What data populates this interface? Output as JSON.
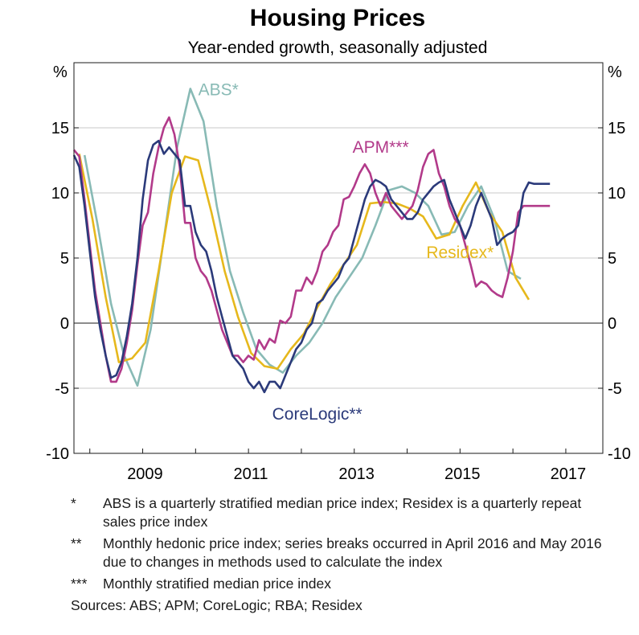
{
  "chart_data": {
    "type": "line",
    "title": "Housing Prices",
    "subtitle": "Year-ended growth, seasonally adjusted",
    "ylabel_left": "%",
    "ylabel_right": "%",
    "xlim": [
      2007.7,
      2017.7
    ],
    "ylim": [
      -10,
      20
    ],
    "yticks": [
      -10,
      -5,
      0,
      5,
      10,
      15
    ],
    "ytick_labels": [
      "-10",
      "-5",
      "0",
      "5",
      "10",
      "15"
    ],
    "xticks": [
      2009,
      2011,
      2013,
      2015,
      2017
    ],
    "xtick_labels": [
      "2009",
      "2011",
      "2013",
      "2015",
      "2017"
    ],
    "grid": true,
    "series": [
      {
        "name": "ABS*",
        "color": "#88bab5",
        "x": [
          2007.9,
          2008.15,
          2008.4,
          2008.65,
          2008.9,
          2009.15,
          2009.4,
          2009.65,
          2009.9,
          2010.15,
          2010.4,
          2010.65,
          2010.9,
          2011.15,
          2011.4,
          2011.65,
          2011.9,
          2012.15,
          2012.4,
          2012.65,
          2012.9,
          2013.15,
          2013.4,
          2013.65,
          2013.9,
          2014.15,
          2014.4,
          2014.65,
          2014.9,
          2015.15,
          2015.4,
          2015.65,
          2015.9,
          2016.15
        ],
        "values": [
          12.9,
          7.5,
          1.5,
          -2.5,
          -4.8,
          -0.5,
          6.5,
          13.5,
          18.0,
          15.5,
          9.0,
          4.0,
          0.8,
          -2.0,
          -3.2,
          -3.8,
          -2.5,
          -1.5,
          0.0,
          2.0,
          3.5,
          5.0,
          7.5,
          10.2,
          10.5,
          10.0,
          9.0,
          6.8,
          7.0,
          9.0,
          10.5,
          8.0,
          4.0,
          3.4
        ]
      },
      {
        "name": "Residex*",
        "color": "#e6b81c",
        "x": [
          2007.8,
          2008.05,
          2008.3,
          2008.55,
          2008.8,
          2009.05,
          2009.3,
          2009.55,
          2009.8,
          2010.05,
          2010.3,
          2010.55,
          2010.8,
          2011.05,
          2011.3,
          2011.55,
          2011.8,
          2012.05,
          2012.3,
          2012.55,
          2012.8,
          2013.05,
          2013.3,
          2013.55,
          2013.8,
          2014.05,
          2014.3,
          2014.55,
          2014.8,
          2015.05,
          2015.3,
          2015.55,
          2015.8,
          2016.05,
          2016.3
        ],
        "values": [
          13.0,
          8.0,
          2.0,
          -3.0,
          -2.7,
          -1.5,
          4.0,
          10.0,
          12.8,
          12.5,
          8.5,
          4.0,
          0.5,
          -2.3,
          -3.3,
          -3.5,
          -2.0,
          -0.8,
          1.2,
          3.0,
          4.5,
          6.0,
          9.2,
          9.3,
          9.2,
          8.8,
          8.2,
          6.5,
          6.8,
          9.0,
          10.8,
          8.5,
          7.0,
          3.5,
          1.8
        ]
      },
      {
        "name": "APM***",
        "color": "#b23a8a",
        "x": [
          2007.7,
          2007.8,
          2007.9,
          2008.0,
          2008.1,
          2008.2,
          2008.3,
          2008.4,
          2008.5,
          2008.6,
          2008.7,
          2008.8,
          2008.9,
          2009.0,
          2009.1,
          2009.2,
          2009.3,
          2009.4,
          2009.5,
          2009.6,
          2009.7,
          2009.8,
          2009.9,
          2010.0,
          2010.1,
          2010.2,
          2010.3,
          2010.4,
          2010.5,
          2010.6,
          2010.7,
          2010.8,
          2010.9,
          2011.0,
          2011.1,
          2011.2,
          2011.3,
          2011.4,
          2011.5,
          2011.6,
          2011.7,
          2011.8,
          2011.9,
          2012.0,
          2012.1,
          2012.2,
          2012.3,
          2012.4,
          2012.5,
          2012.6,
          2012.7,
          2012.8,
          2012.9,
          2013.0,
          2013.1,
          2013.2,
          2013.3,
          2013.4,
          2013.5,
          2013.6,
          2013.7,
          2013.8,
          2013.9,
          2014.0,
          2014.1,
          2014.2,
          2014.3,
          2014.4,
          2014.5,
          2014.6,
          2014.7,
          2014.8,
          2014.9,
          2015.0,
          2015.1,
          2015.2,
          2015.3,
          2015.4,
          2015.5,
          2015.6,
          2015.7,
          2015.8,
          2015.9,
          2016.0,
          2016.1,
          2016.2,
          2016.3,
          2016.4,
          2016.5,
          2016.6,
          2016.7
        ],
        "values": [
          13.3,
          12.8,
          9.5,
          6.0,
          2.5,
          0.0,
          -2.5,
          -4.5,
          -4.5,
          -3.5,
          -1.5,
          1.0,
          4.5,
          7.5,
          8.5,
          11.5,
          13.5,
          15.0,
          15.8,
          14.5,
          12.0,
          7.7,
          7.7,
          5.0,
          4.0,
          3.5,
          2.5,
          1.0,
          -0.5,
          -1.5,
          -2.5,
          -2.5,
          -3.0,
          -2.5,
          -2.8,
          -1.3,
          -2.0,
          -1.2,
          -1.5,
          0.2,
          0.0,
          0.5,
          2.5,
          2.5,
          3.5,
          3.0,
          4.0,
          5.5,
          6.0,
          7.0,
          7.5,
          9.5,
          9.7,
          10.5,
          11.5,
          12.2,
          11.5,
          10.0,
          9.0,
          10.0,
          9.0,
          8.5,
          8.0,
          8.5,
          9.0,
          10.2,
          12.0,
          13.0,
          13.3,
          11.5,
          10.5,
          9.0,
          8.0,
          7.5,
          6.0,
          4.5,
          2.8,
          3.2,
          3.0,
          2.5,
          2.2,
          2.0,
          3.5,
          5.5,
          8.5,
          9.0,
          9.0,
          9.0,
          9.0,
          9.0,
          9.0
        ],
        "label_marks_last_point": true
      },
      {
        "name": "CoreLogic**",
        "color": "#2b3a7a",
        "x": [
          2007.7,
          2007.8,
          2007.9,
          2008.0,
          2008.1,
          2008.2,
          2008.3,
          2008.4,
          2008.5,
          2008.6,
          2008.7,
          2008.8,
          2008.9,
          2009.0,
          2009.1,
          2009.2,
          2009.3,
          2009.4,
          2009.5,
          2009.6,
          2009.7,
          2009.8,
          2009.9,
          2010.0,
          2010.1,
          2010.2,
          2010.3,
          2010.4,
          2010.5,
          2010.6,
          2010.7,
          2010.8,
          2010.9,
          2011.0,
          2011.1,
          2011.2,
          2011.3,
          2011.4,
          2011.5,
          2011.6,
          2011.7,
          2011.8,
          2011.9,
          2012.0,
          2012.1,
          2012.2,
          2012.3,
          2012.4,
          2012.5,
          2012.6,
          2012.7,
          2012.8,
          2012.9,
          2013.0,
          2013.1,
          2013.2,
          2013.3,
          2013.4,
          2013.5,
          2013.6,
          2013.7,
          2013.8,
          2013.9,
          2014.0,
          2014.1,
          2014.2,
          2014.3,
          2014.4,
          2014.5,
          2014.6,
          2014.7,
          2014.8,
          2014.9,
          2015.0,
          2015.1,
          2015.2,
          2015.3,
          2015.4,
          2015.5,
          2015.6,
          2015.7,
          2015.8,
          2015.9,
          2016.0,
          2016.1,
          2016.2,
          2016.3,
          2016.4,
          2016.5,
          2016.6,
          2016.7
        ],
        "values": [
          12.9,
          12.0,
          9.0,
          5.5,
          2.0,
          -0.5,
          -2.5,
          -4.2,
          -4.0,
          -3.0,
          -1.0,
          1.5,
          5.0,
          9.5,
          12.5,
          13.7,
          14.0,
          13.0,
          13.5,
          13.0,
          12.5,
          9.0,
          9.0,
          7.0,
          6.0,
          5.5,
          4.0,
          2.0,
          0.5,
          -1.0,
          -2.5,
          -3.0,
          -3.5,
          -4.5,
          -5.0,
          -4.5,
          -5.3,
          -4.5,
          -4.5,
          -5.0,
          -4.0,
          -3.0,
          -2.0,
          -1.5,
          -0.5,
          0.0,
          1.5,
          1.8,
          2.5,
          3.0,
          3.5,
          4.5,
          5.0,
          6.5,
          8.0,
          9.5,
          10.5,
          11.0,
          10.8,
          10.5,
          9.5,
          9.0,
          8.5,
          8.0,
          8.0,
          8.5,
          9.5,
          10.0,
          10.5,
          10.8,
          11.0,
          9.5,
          8.5,
          7.5,
          6.5,
          7.5,
          9.0,
          10.0,
          9.0,
          8.0,
          6.0,
          6.5,
          6.8,
          7.0,
          7.5,
          10.0,
          10.8,
          10.7,
          10.7,
          10.7,
          10.7
        ]
      }
    ],
    "series_labels_on_chart": [
      "ABS*",
      "APM***",
      "Residex*",
      "CoreLogic**"
    ],
    "legend": "none"
  },
  "notes": [
    {
      "mark": "*",
      "text": "ABS is a quarterly stratified median price index; Residex is a quarterly repeat sales price index"
    },
    {
      "mark": "**",
      "text": "Monthly hedonic price index; series breaks occurred in April 2016 and May 2016 due to changes in methods used to calculate the index"
    },
    {
      "mark": "***",
      "text": "Monthly stratified median price index"
    }
  ],
  "sources": "Sources:  ABS; APM; CoreLogic; RBA; Residex"
}
